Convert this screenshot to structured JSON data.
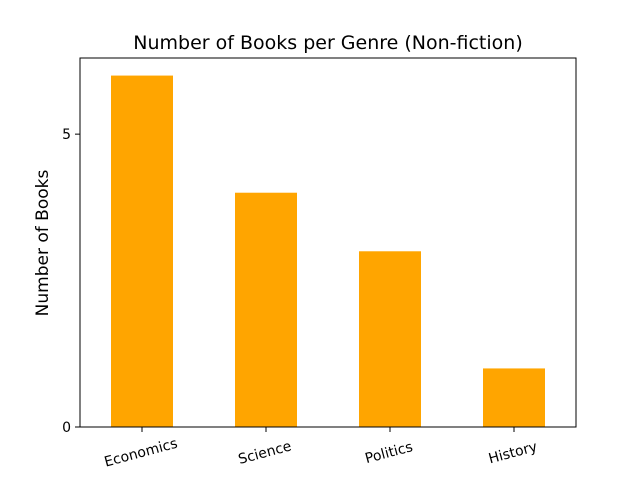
{
  "chart_data": {
    "type": "bar",
    "title": "Number of Books per Genre (Non-fiction)",
    "xlabel": "",
    "ylabel": "Number of Books",
    "categories": [
      "Economics",
      "Science",
      "Politics",
      "History"
    ],
    "values": [
      6,
      4,
      3,
      1
    ],
    "ylim": [
      0,
      6.3
    ],
    "yticks": [
      0,
      5
    ],
    "grid": false,
    "bar_color": "#FFA500",
    "axis_color": "#000000"
  }
}
